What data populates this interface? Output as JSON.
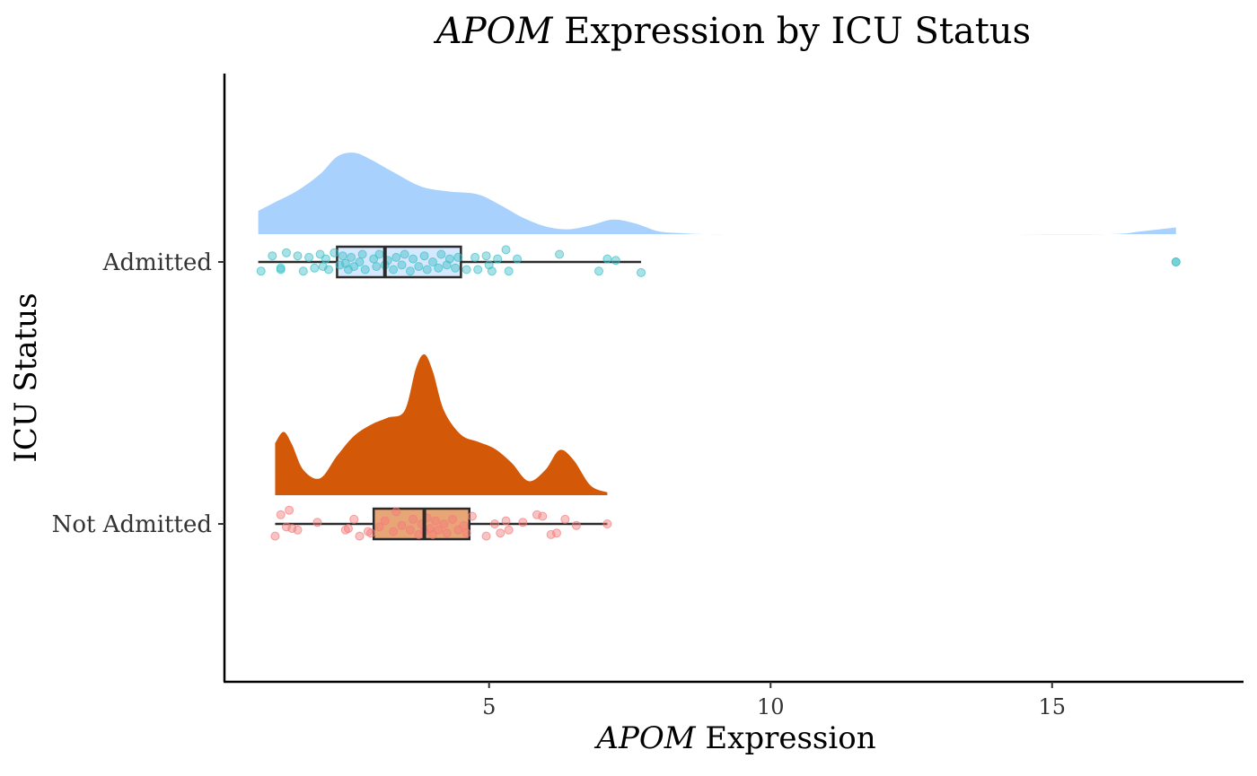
{
  "chart_data": {
    "type": "raincloud",
    "title_prefix": "APOM",
    "title_suffix": " Expression by ICU Status",
    "xlabel_prefix": "APOM",
    "xlabel_suffix": " Expression",
    "ylabel": "ICU Status",
    "xlim": [
      0.3,
      18.4
    ],
    "x_ticks": [
      5,
      10,
      15
    ],
    "x_tick_labels": [
      "5",
      "10",
      "15"
    ],
    "grid": false,
    "legend": "none",
    "groups": [
      {
        "label": "Admitted",
        "density_color": "#a8d1fd",
        "box_fill": "#d6e8fe",
        "point_color": "#3fbfc7",
        "box": {
          "min": 0.9,
          "q1": 2.3,
          "median": 3.15,
          "q3": 4.5,
          "max": 7.7
        },
        "outliers": [
          17.2
        ],
        "density": {
          "x": [
            0.9,
            1.2,
            1.6,
            2.0,
            2.3,
            2.6,
            2.9,
            3.3,
            3.8,
            4.3,
            4.8,
            5.2,
            5.6,
            6.0,
            6.4,
            6.8,
            7.2,
            7.6,
            8.0,
            8.4,
            8.8,
            9.5,
            10.5,
            12,
            14,
            16.0,
            16.6,
            17.2
          ],
          "y": [
            0.24,
            0.33,
            0.45,
            0.62,
            0.8,
            0.84,
            0.77,
            0.64,
            0.49,
            0.44,
            0.41,
            0.3,
            0.17,
            0.08,
            0.05,
            0.09,
            0.15,
            0.11,
            0.03,
            0.01,
            0.0,
            0.0,
            0.0,
            0.0,
            0.0,
            0.0,
            0.03,
            0.07
          ]
        },
        "points": [
          [
            0.95,
            0.6
          ],
          [
            1.15,
            -0.4
          ],
          [
            1.3,
            0.5
          ],
          [
            1.4,
            -0.6
          ],
          [
            1.3,
            0.4
          ],
          [
            1.6,
            -0.4
          ],
          [
            1.7,
            0.6
          ],
          [
            1.8,
            -0.3
          ],
          [
            1.9,
            0.4
          ],
          [
            2.0,
            -0.5
          ],
          [
            2.05,
            0.3
          ],
          [
            2.1,
            -0.2
          ],
          [
            2.15,
            0.5
          ],
          [
            2.25,
            -0.6
          ],
          [
            2.35,
            0.2
          ],
          [
            2.4,
            -0.4
          ],
          [
            2.45,
            0.1
          ],
          [
            2.5,
            0.5
          ],
          [
            2.55,
            -0.3
          ],
          [
            2.6,
            0.3
          ],
          [
            2.7,
            0.0
          ],
          [
            2.75,
            -0.5
          ],
          [
            2.8,
            0.5
          ],
          [
            2.95,
            -0.2
          ],
          [
            3.0,
            0.3
          ],
          [
            3.05,
            -0.5
          ],
          [
            3.15,
            0.2
          ],
          [
            3.2,
            -0.1
          ],
          [
            3.3,
            0.5
          ],
          [
            3.35,
            -0.3
          ],
          [
            3.45,
            0.2
          ],
          [
            3.5,
            -0.5
          ],
          [
            3.6,
            0.6
          ],
          [
            3.65,
            -0.2
          ],
          [
            3.75,
            0.3
          ],
          [
            3.85,
            -0.4
          ],
          [
            3.9,
            0.5
          ],
          [
            4.0,
            0.0
          ],
          [
            4.1,
            0.4
          ],
          [
            4.15,
            -0.5
          ],
          [
            4.25,
            0.2
          ],
          [
            4.3,
            -0.2
          ],
          [
            4.4,
            0.4
          ],
          [
            4.45,
            -0.3
          ],
          [
            4.6,
            0.5
          ],
          [
            4.75,
            -0.3
          ],
          [
            4.8,
            0.5
          ],
          [
            4.95,
            -0.4
          ],
          [
            5.0,
            0.2
          ],
          [
            5.05,
            0.6
          ],
          [
            5.15,
            -0.2
          ],
          [
            5.3,
            -0.8
          ],
          [
            5.35,
            0.6
          ],
          [
            5.5,
            -0.2
          ],
          [
            6.25,
            -0.5
          ],
          [
            6.95,
            0.6
          ],
          [
            7.1,
            -0.2
          ],
          [
            7.25,
            -0.1
          ],
          [
            7.7,
            0.7
          ],
          [
            17.2,
            0.0
          ]
        ]
      },
      {
        "label": "Not Admitted",
        "density_color": "#d35807",
        "box_fill": "#e8a677",
        "point_color": "#f57b7b",
        "box": {
          "min": 1.2,
          "q1": 2.95,
          "median": 3.85,
          "q3": 4.65,
          "max": 7.1
        },
        "outliers": [],
        "density": {
          "x": [
            1.2,
            1.35,
            1.5,
            1.7,
            2.0,
            2.3,
            2.6,
            2.9,
            3.2,
            3.5,
            3.7,
            3.85,
            4.0,
            4.2,
            4.5,
            4.8,
            5.1,
            5.4,
            5.7,
            6.0,
            6.25,
            6.5,
            6.8,
            7.1
          ],
          "y": [
            0.37,
            0.45,
            0.36,
            0.18,
            0.12,
            0.28,
            0.42,
            0.5,
            0.55,
            0.6,
            0.9,
            1.0,
            0.88,
            0.6,
            0.43,
            0.38,
            0.33,
            0.23,
            0.1,
            0.18,
            0.32,
            0.25,
            0.07,
            0.02
          ]
        },
        "points": [
          [
            1.2,
            0.8
          ],
          [
            1.3,
            -0.6
          ],
          [
            1.4,
            0.2
          ],
          [
            1.45,
            -0.9
          ],
          [
            1.5,
            0.3
          ],
          [
            1.6,
            0.4
          ],
          [
            1.95,
            -0.1
          ],
          [
            2.45,
            0.4
          ],
          [
            2.5,
            0.3
          ],
          [
            2.6,
            -0.3
          ],
          [
            2.7,
            0.8
          ],
          [
            2.85,
            0.5
          ],
          [
            2.9,
            0.6
          ],
          [
            3.05,
            0.2
          ],
          [
            3.15,
            -0.2
          ],
          [
            3.3,
            0.5
          ],
          [
            3.35,
            -0.8
          ],
          [
            3.45,
            0.1
          ],
          [
            3.6,
            0.4
          ],
          [
            3.65,
            -0.3
          ],
          [
            3.75,
            0.7
          ],
          [
            3.8,
            0.0
          ],
          [
            3.85,
            0.5
          ],
          [
            3.9,
            -0.4
          ],
          [
            3.95,
            0.3
          ],
          [
            4.0,
            0.7
          ],
          [
            4.05,
            -0.2
          ],
          [
            4.1,
            0.4
          ],
          [
            4.2,
            0.0
          ],
          [
            4.25,
            0.6
          ],
          [
            4.35,
            -0.3
          ],
          [
            4.45,
            0.4
          ],
          [
            4.55,
            0.1
          ],
          [
            4.6,
            0.6
          ],
          [
            4.7,
            -0.5
          ],
          [
            4.95,
            0.8
          ],
          [
            5.1,
            0.0
          ],
          [
            5.2,
            0.6
          ],
          [
            5.3,
            -0.2
          ],
          [
            5.35,
            0.4
          ],
          [
            5.6,
            -0.1
          ],
          [
            5.85,
            -0.6
          ],
          [
            5.95,
            -0.5
          ],
          [
            6.1,
            0.7
          ],
          [
            6.2,
            0.6
          ],
          [
            6.35,
            -0.3
          ],
          [
            6.55,
            0.1
          ],
          [
            7.1,
            0.0
          ]
        ]
      }
    ]
  }
}
